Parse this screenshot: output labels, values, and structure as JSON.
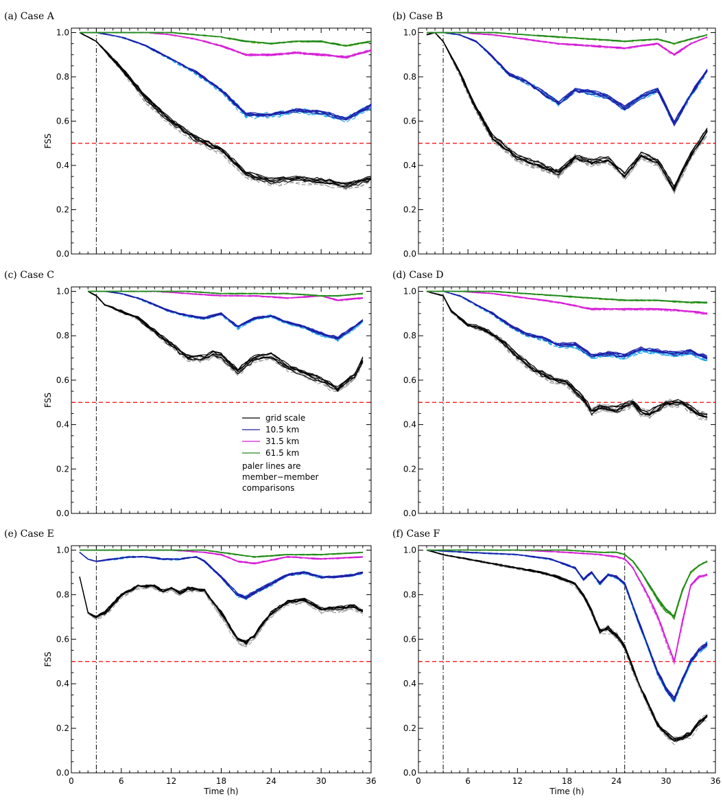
{
  "figure": {
    "x_tick_labels": [
      "0",
      "6",
      "12",
      "18",
      "24",
      "30",
      "36"
    ],
    "y_tick_labels": [
      "0.0",
      "0.2",
      "0.4",
      "0.6",
      "0.8",
      "1.0"
    ]
  },
  "legend": {
    "entries": [
      {
        "label": "grid scale",
        "color": "#000000"
      },
      {
        "label": "10.5 km",
        "color": "#1f1fa8"
      },
      {
        "label": "31.5 km",
        "color": "#d61ed6"
      },
      {
        "label": "61.5 km",
        "color": "#1f8a1f"
      }
    ],
    "note": [
      "paler lines are",
      "member−member",
      "comparisons"
    ]
  },
  "colors": {
    "grid_scale": "#000000",
    "grid_scale_pale": "#999999",
    "km10": "#1f1fa8",
    "km10_pale": "#1ea3e8",
    "km31": "#d61ed6",
    "km31_pale": "#e97ee9",
    "km61": "#1f8a1f",
    "km61_pale": "#8cc63f",
    "threshold": "#ff0000"
  },
  "chart_data": [
    {
      "type": "line",
      "title": "(a) Case A",
      "xlabel": "",
      "ylabel": "FSS",
      "xlim": [
        0,
        36
      ],
      "ylim": [
        0,
        1.02
      ],
      "threshold": 0.5,
      "vlines": [
        3
      ],
      "series": [
        {
          "name": "grid scale",
          "x": [
            1,
            3,
            6,
            9,
            12,
            15,
            18,
            21,
            24,
            27,
            30,
            33,
            36
          ],
          "y": [
            1.0,
            0.96,
            0.84,
            0.7,
            0.6,
            0.52,
            0.47,
            0.36,
            0.33,
            0.34,
            0.33,
            0.31,
            0.34
          ]
        },
        {
          "name": "10.5 km",
          "x": [
            1,
            3,
            6,
            9,
            12,
            15,
            18,
            21,
            24,
            27,
            30,
            33,
            36
          ],
          "y": [
            1.0,
            1.0,
            0.98,
            0.94,
            0.88,
            0.82,
            0.74,
            0.63,
            0.63,
            0.65,
            0.64,
            0.61,
            0.67
          ]
        },
        {
          "name": "31.5 km",
          "x": [
            1,
            3,
            6,
            9,
            12,
            15,
            18,
            21,
            24,
            27,
            30,
            33,
            36
          ],
          "y": [
            1.0,
            1.0,
            1.0,
            1.0,
            0.99,
            0.97,
            0.94,
            0.9,
            0.9,
            0.91,
            0.9,
            0.89,
            0.92
          ]
        },
        {
          "name": "61.5 km",
          "x": [
            1,
            3,
            6,
            9,
            12,
            15,
            18,
            21,
            24,
            27,
            30,
            33,
            36
          ],
          "y": [
            1.0,
            1.0,
            1.0,
            1.0,
            1.0,
            0.99,
            0.98,
            0.96,
            0.95,
            0.96,
            0.96,
            0.94,
            0.96
          ]
        }
      ]
    },
    {
      "type": "line",
      "title": "(b) Case B",
      "xlabel": "",
      "ylabel": "",
      "xlim": [
        0,
        36
      ],
      "ylim": [
        0,
        1.02
      ],
      "threshold": 0.5,
      "vlines": [
        3
      ],
      "series": [
        {
          "name": "grid scale",
          "x": [
            1,
            2,
            3,
            5,
            7,
            9,
            12,
            15,
            17,
            19,
            21,
            23,
            25,
            27,
            29,
            31,
            33,
            35
          ],
          "y": [
            0.99,
            1.0,
            0.96,
            0.82,
            0.66,
            0.53,
            0.44,
            0.4,
            0.37,
            0.44,
            0.42,
            0.43,
            0.36,
            0.45,
            0.42,
            0.3,
            0.45,
            0.56
          ]
        },
        {
          "name": "10.5 km",
          "x": [
            1,
            3,
            5,
            7,
            9,
            11,
            13,
            15,
            17,
            19,
            21,
            23,
            25,
            27,
            29,
            31,
            33,
            35
          ],
          "y": [
            1.0,
            1.0,
            0.99,
            0.96,
            0.89,
            0.81,
            0.78,
            0.73,
            0.68,
            0.74,
            0.73,
            0.71,
            0.66,
            0.71,
            0.74,
            0.59,
            0.72,
            0.83
          ]
        },
        {
          "name": "31.5 km",
          "x": [
            1,
            5,
            9,
            13,
            17,
            21,
            25,
            29,
            31,
            33,
            35
          ],
          "y": [
            1.0,
            1.0,
            0.99,
            0.97,
            0.95,
            0.94,
            0.93,
            0.95,
            0.9,
            0.95,
            0.98
          ]
        },
        {
          "name": "61.5 km",
          "x": [
            1,
            5,
            9,
            13,
            17,
            21,
            25,
            29,
            31,
            33,
            35
          ],
          "y": [
            1.0,
            1.0,
            1.0,
            0.99,
            0.98,
            0.97,
            0.96,
            0.97,
            0.95,
            0.97,
            0.99
          ]
        }
      ]
    },
    {
      "type": "line",
      "title": "(c) Case C",
      "xlabel": "",
      "ylabel": "FSS",
      "xlim": [
        0,
        36
      ],
      "ylim": [
        0,
        1.02
      ],
      "threshold": 0.5,
      "vlines": [
        3
      ],
      "series": [
        {
          "name": "grid scale",
          "x": [
            2,
            3,
            4,
            6,
            8,
            10,
            12,
            14,
            16,
            17,
            18,
            20,
            22,
            24,
            26,
            28,
            30,
            32,
            34,
            35
          ],
          "y": [
            1.0,
            0.98,
            0.94,
            0.91,
            0.88,
            0.82,
            0.76,
            0.7,
            0.7,
            0.72,
            0.71,
            0.64,
            0.7,
            0.71,
            0.66,
            0.63,
            0.6,
            0.56,
            0.62,
            0.69
          ]
        },
        {
          "name": "10.5 km",
          "x": [
            2,
            4,
            6,
            8,
            10,
            12,
            14,
            16,
            18,
            20,
            22,
            24,
            26,
            28,
            30,
            32,
            34,
            35
          ],
          "y": [
            1.0,
            1.0,
            0.99,
            0.97,
            0.94,
            0.91,
            0.89,
            0.88,
            0.9,
            0.84,
            0.88,
            0.89,
            0.86,
            0.84,
            0.81,
            0.79,
            0.84,
            0.87
          ]
        },
        {
          "name": "31.5 km",
          "x": [
            2,
            6,
            10,
            14,
            18,
            22,
            26,
            30,
            32,
            35
          ],
          "y": [
            1.0,
            1.0,
            1.0,
            0.99,
            0.98,
            0.98,
            0.97,
            0.98,
            0.96,
            0.97
          ]
        },
        {
          "name": "61.5 km",
          "x": [
            2,
            6,
            10,
            14,
            18,
            22,
            26,
            30,
            32,
            35
          ],
          "y": [
            1.0,
            1.0,
            1.0,
            1.0,
            0.99,
            0.99,
            0.99,
            0.98,
            0.98,
            0.99
          ]
        }
      ]
    },
    {
      "type": "line",
      "title": "(d) Case D",
      "xlabel": "",
      "ylabel": "",
      "xlim": [
        0,
        36
      ],
      "ylim": [
        0,
        1.02
      ],
      "threshold": 0.5,
      "vlines": [
        3
      ],
      "series": [
        {
          "name": "grid scale",
          "x": [
            1,
            3,
            4,
            6,
            8,
            10,
            12,
            14,
            16,
            18,
            20,
            21,
            22,
            24,
            26,
            27,
            28,
            30,
            32,
            34,
            35
          ],
          "y": [
            1.0,
            0.98,
            0.91,
            0.85,
            0.83,
            0.78,
            0.71,
            0.65,
            0.61,
            0.59,
            0.52,
            0.46,
            0.48,
            0.47,
            0.5,
            0.46,
            0.45,
            0.5,
            0.5,
            0.45,
            0.44
          ]
        },
        {
          "name": "10.5 km",
          "x": [
            1,
            3,
            5,
            7,
            9,
            11,
            13,
            15,
            17,
            19,
            21,
            23,
            25,
            27,
            29,
            31,
            33,
            35
          ],
          "y": [
            1.0,
            1.0,
            0.98,
            0.94,
            0.9,
            0.85,
            0.81,
            0.79,
            0.76,
            0.76,
            0.71,
            0.72,
            0.71,
            0.74,
            0.73,
            0.72,
            0.73,
            0.7
          ]
        },
        {
          "name": "31.5 km",
          "x": [
            1,
            5,
            9,
            13,
            17,
            21,
            25,
            29,
            33,
            35
          ],
          "y": [
            1.0,
            1.0,
            0.99,
            0.97,
            0.95,
            0.92,
            0.92,
            0.92,
            0.91,
            0.9
          ]
        },
        {
          "name": "61.5 km",
          "x": [
            1,
            5,
            9,
            13,
            17,
            21,
            25,
            29,
            33,
            35
          ],
          "y": [
            1.0,
            1.0,
            1.0,
            0.99,
            0.98,
            0.97,
            0.96,
            0.96,
            0.95,
            0.95
          ]
        }
      ]
    },
    {
      "type": "line",
      "title": "(e) Case E",
      "xlabel": "Time (h)",
      "ylabel": "FSS",
      "xlim": [
        0,
        36
      ],
      "ylim": [
        0,
        1.02
      ],
      "threshold": 0.5,
      "vlines": [
        3
      ],
      "series": [
        {
          "name": "grid scale",
          "x": [
            1,
            2,
            3,
            4,
            6,
            8,
            10,
            11,
            12,
            13,
            14,
            16,
            18,
            20,
            21,
            22,
            24,
            26,
            28,
            30,
            32,
            34,
            35
          ],
          "y": [
            0.88,
            0.72,
            0.7,
            0.72,
            0.8,
            0.84,
            0.84,
            0.82,
            0.83,
            0.81,
            0.83,
            0.82,
            0.72,
            0.6,
            0.59,
            0.62,
            0.72,
            0.77,
            0.78,
            0.74,
            0.74,
            0.75,
            0.73
          ]
        },
        {
          "name": "10.5 km",
          "x": [
            1,
            2,
            3,
            5,
            7,
            9,
            11,
            13,
            15,
            16,
            18,
            20,
            21,
            22,
            24,
            26,
            28,
            30,
            32,
            34,
            35
          ],
          "y": [
            0.99,
            0.96,
            0.95,
            0.96,
            0.97,
            0.97,
            0.96,
            0.96,
            0.97,
            0.95,
            0.88,
            0.8,
            0.79,
            0.81,
            0.85,
            0.89,
            0.9,
            0.88,
            0.88,
            0.89,
            0.9
          ]
        },
        {
          "name": "31.5 km",
          "x": [
            1,
            6,
            12,
            16,
            18,
            20,
            22,
            26,
            30,
            35
          ],
          "y": [
            1.0,
            1.0,
            1.0,
            0.99,
            0.98,
            0.95,
            0.94,
            0.97,
            0.96,
            0.97
          ]
        },
        {
          "name": "61.5 km",
          "x": [
            1,
            6,
            12,
            16,
            18,
            20,
            22,
            26,
            30,
            35
          ],
          "y": [
            1.0,
            1.0,
            1.0,
            1.0,
            0.99,
            0.98,
            0.97,
            0.98,
            0.98,
            0.99
          ]
        }
      ]
    },
    {
      "type": "line",
      "title": "(f) Case F",
      "xlabel": "Time (h)",
      "ylabel": "",
      "xlim": [
        0,
        36
      ],
      "ylim": [
        0,
        1.02
      ],
      "threshold": 0.5,
      "vlines": [
        3,
        25
      ],
      "series": [
        {
          "name": "grid scale",
          "x": [
            1,
            3,
            6,
            9,
            12,
            15,
            17,
            19,
            20,
            21,
            22,
            23,
            24,
            25,
            26,
            27,
            28,
            29,
            30,
            31,
            32,
            33,
            34,
            35
          ],
          "y": [
            1.0,
            0.98,
            0.96,
            0.94,
            0.92,
            0.9,
            0.88,
            0.85,
            0.8,
            0.73,
            0.64,
            0.65,
            0.62,
            0.57,
            0.47,
            0.38,
            0.3,
            0.22,
            0.18,
            0.15,
            0.16,
            0.18,
            0.23,
            0.26
          ]
        },
        {
          "name": "10.5 km",
          "x": [
            1,
            6,
            12,
            16,
            19,
            20,
            21,
            22,
            23,
            24,
            25,
            26,
            27,
            28,
            29,
            30,
            31,
            32,
            33,
            34,
            35
          ],
          "y": [
            1.0,
            0.99,
            0.98,
            0.96,
            0.92,
            0.87,
            0.9,
            0.85,
            0.89,
            0.88,
            0.85,
            0.75,
            0.65,
            0.55,
            0.45,
            0.38,
            0.33,
            0.42,
            0.5,
            0.55,
            0.58
          ]
        },
        {
          "name": "31.5 km",
          "x": [
            1,
            6,
            12,
            18,
            22,
            24,
            25,
            26,
            27,
            28,
            29,
            30,
            31,
            32,
            33,
            34,
            35
          ],
          "y": [
            1.0,
            1.0,
            1.0,
            0.99,
            0.98,
            0.97,
            0.96,
            0.92,
            0.85,
            0.78,
            0.7,
            0.6,
            0.5,
            0.68,
            0.84,
            0.88,
            0.89
          ]
        },
        {
          "name": "61.5 km",
          "x": [
            1,
            6,
            12,
            18,
            22,
            24,
            25,
            26,
            27,
            28,
            29,
            30,
            31,
            32,
            33,
            34,
            35
          ],
          "y": [
            1.0,
            1.0,
            1.0,
            1.0,
            0.99,
            0.99,
            0.98,
            0.95,
            0.9,
            0.84,
            0.78,
            0.73,
            0.7,
            0.82,
            0.9,
            0.93,
            0.95
          ]
        }
      ]
    }
  ]
}
